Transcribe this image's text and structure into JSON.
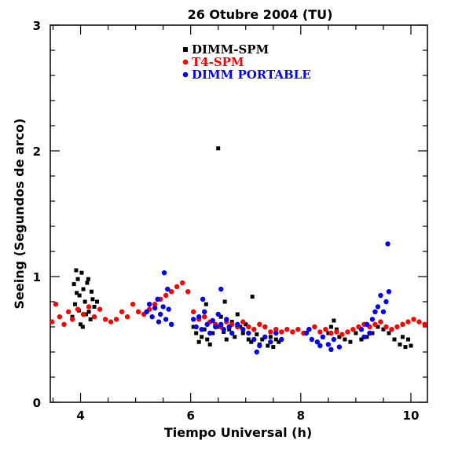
{
  "chart_data": {
    "type": "scatter",
    "title": "26 Otubre 2004 (TU)",
    "xlabel": "Tiempo Universal (h)",
    "ylabel": "Seeing (Segundos de arco)",
    "xlim": [
      3.45,
      10.3
    ],
    "ylim": [
      0,
      3
    ],
    "xticks": [
      4,
      6,
      8,
      10
    ],
    "yticks": [
      0,
      1,
      2,
      3
    ],
    "grid": false,
    "legend_position": "top-center",
    "series": [
      {
        "name": "DIMM-SPM",
        "marker": "square",
        "color": "#000000",
        "points": [
          [
            3.88,
            0.94
          ],
          [
            3.92,
            1.05
          ],
          [
            3.95,
            0.98
          ],
          [
            3.98,
            0.85
          ],
          [
            4.02,
            1.03
          ],
          [
            4.05,
            0.9
          ],
          [
            4.08,
            0.8
          ],
          [
            4.12,
            0.95
          ],
          [
            4.15,
            0.72
          ],
          [
            4.2,
            0.88
          ],
          [
            4.25,
            0.76
          ],
          [
            3.85,
            0.68
          ],
          [
            3.9,
            0.78
          ],
          [
            4.0,
            0.62
          ],
          [
            4.1,
            0.7
          ],
          [
            4.18,
            0.66
          ],
          [
            4.22,
            0.82
          ],
          [
            3.97,
            0.73
          ],
          [
            4.3,
            0.8
          ],
          [
            4.04,
            0.6
          ],
          [
            4.14,
            0.98
          ],
          [
            3.93,
            0.87
          ],
          [
            6.05,
            0.6
          ],
          [
            6.1,
            0.55
          ],
          [
            6.15,
            0.48
          ],
          [
            6.2,
            0.52
          ],
          [
            6.25,
            0.58
          ],
          [
            6.3,
            0.5
          ],
          [
            6.35,
            0.46
          ],
          [
            6.4,
            0.55
          ],
          [
            6.45,
            0.62
          ],
          [
            6.5,
            0.6
          ],
          [
            6.55,
            0.68
          ],
          [
            6.6,
            0.56
          ],
          [
            6.65,
            0.5
          ],
          [
            6.7,
            0.58
          ],
          [
            6.75,
            0.64
          ],
          [
            6.8,
            0.52
          ],
          [
            6.85,
            0.7
          ],
          [
            6.9,
            0.6
          ],
          [
            6.95,
            0.55
          ],
          [
            7.0,
            0.62
          ],
          [
            7.05,
            0.5
          ],
          [
            7.1,
            0.48
          ],
          [
            7.15,
            0.58
          ],
          [
            7.2,
            0.54
          ],
          [
            7.25,
            0.46
          ],
          [
            7.3,
            0.5
          ],
          [
            7.35,
            0.6
          ],
          [
            7.4,
            0.45
          ],
          [
            7.45,
            0.52
          ],
          [
            7.5,
            0.44
          ],
          [
            7.55,
            0.5
          ],
          [
            7.6,
            0.48
          ],
          [
            6.28,
            0.78
          ],
          [
            6.62,
            0.8
          ],
          [
            7.12,
            0.84
          ],
          [
            6.5,
            2.02
          ],
          [
            8.4,
            0.52
          ],
          [
            8.5,
            0.55
          ],
          [
            8.55,
            0.6
          ],
          [
            8.6,
            0.65
          ],
          [
            8.65,
            0.58
          ],
          [
            8.7,
            0.52
          ],
          [
            8.8,
            0.5
          ],
          [
            8.9,
            0.48
          ],
          [
            9.0,
            0.55
          ],
          [
            9.1,
            0.5
          ],
          [
            9.2,
            0.52
          ],
          [
            9.3,
            0.55
          ],
          [
            9.4,
            0.6
          ],
          [
            9.5,
            0.58
          ],
          [
            9.6,
            0.55
          ],
          [
            9.7,
            0.5
          ],
          [
            9.8,
            0.46
          ],
          [
            9.85,
            0.52
          ],
          [
            9.9,
            0.44
          ],
          [
            9.95,
            0.5
          ],
          [
            10.0,
            0.45
          ]
        ]
      },
      {
        "name": "T4-SPM",
        "marker": "circle",
        "color": "#ff0000",
        "points": [
          [
            3.48,
            0.64
          ],
          [
            3.55,
            0.78
          ],
          [
            3.62,
            0.68
          ],
          [
            3.7,
            0.62
          ],
          [
            3.78,
            0.72
          ],
          [
            3.85,
            0.66
          ],
          [
            3.95,
            0.74
          ],
          [
            4.05,
            0.7
          ],
          [
            4.15,
            0.76
          ],
          [
            4.25,
            0.68
          ],
          [
            4.35,
            0.74
          ],
          [
            4.45,
            0.66
          ],
          [
            4.55,
            0.64
          ],
          [
            4.65,
            0.66
          ],
          [
            4.75,
            0.72
          ],
          [
            4.85,
            0.68
          ],
          [
            4.95,
            0.78
          ],
          [
            5.05,
            0.72
          ],
          [
            5.15,
            0.7
          ],
          [
            5.25,
            0.74
          ],
          [
            5.35,
            0.78
          ],
          [
            5.45,
            0.82
          ],
          [
            5.55,
            0.85
          ],
          [
            5.65,
            0.88
          ],
          [
            5.75,
            0.92
          ],
          [
            5.85,
            0.95
          ],
          [
            5.95,
            0.88
          ],
          [
            6.05,
            0.72
          ],
          [
            6.15,
            0.66
          ],
          [
            6.25,
            0.68
          ],
          [
            6.35,
            0.64
          ],
          [
            6.45,
            0.62
          ],
          [
            6.55,
            0.6
          ],
          [
            6.65,
            0.64
          ],
          [
            6.75,
            0.62
          ],
          [
            6.85,
            0.6
          ],
          [
            6.95,
            0.64
          ],
          [
            7.05,
            0.6
          ],
          [
            7.15,
            0.58
          ],
          [
            7.25,
            0.62
          ],
          [
            7.35,
            0.6
          ],
          [
            7.45,
            0.56
          ],
          [
            7.55,
            0.58
          ],
          [
            7.65,
            0.56
          ],
          [
            7.75,
            0.58
          ],
          [
            7.85,
            0.56
          ],
          [
            7.95,
            0.58
          ],
          [
            8.05,
            0.55
          ],
          [
            8.15,
            0.58
          ],
          [
            8.25,
            0.6
          ],
          [
            8.35,
            0.56
          ],
          [
            8.45,
            0.58
          ],
          [
            8.55,
            0.55
          ],
          [
            8.65,
            0.56
          ],
          [
            8.75,
            0.54
          ],
          [
            8.85,
            0.56
          ],
          [
            8.95,
            0.58
          ],
          [
            9.05,
            0.6
          ],
          [
            9.15,
            0.62
          ],
          [
            9.25,
            0.6
          ],
          [
            9.35,
            0.62
          ],
          [
            9.45,
            0.64
          ],
          [
            9.55,
            0.6
          ],
          [
            9.65,
            0.58
          ],
          [
            9.75,
            0.6
          ],
          [
            9.85,
            0.62
          ],
          [
            9.95,
            0.64
          ],
          [
            10.05,
            0.66
          ],
          [
            10.15,
            0.64
          ],
          [
            10.25,
            0.62
          ]
        ]
      },
      {
        "name": "DIMM PORTABLE",
        "marker": "circle",
        "color": "#0000ff",
        "points": [
          [
            5.2,
            0.72
          ],
          [
            5.25,
            0.78
          ],
          [
            5.3,
            0.68
          ],
          [
            5.35,
            0.75
          ],
          [
            5.4,
            0.82
          ],
          [
            5.45,
            0.7
          ],
          [
            5.5,
            0.76
          ],
          [
            5.55,
            0.66
          ],
          [
            5.6,
            0.74
          ],
          [
            5.65,
            0.62
          ],
          [
            5.52,
            1.03
          ],
          [
            5.58,
            0.9
          ],
          [
            5.42,
            0.64
          ],
          [
            6.05,
            0.66
          ],
          [
            6.1,
            0.6
          ],
          [
            6.15,
            0.68
          ],
          [
            6.2,
            0.58
          ],
          [
            6.25,
            0.72
          ],
          [
            6.3,
            0.62
          ],
          [
            6.35,
            0.55
          ],
          [
            6.4,
            0.65
          ],
          [
            6.45,
            0.6
          ],
          [
            6.5,
            0.7
          ],
          [
            6.55,
            0.62
          ],
          [
            6.6,
            0.58
          ],
          [
            6.65,
            0.66
          ],
          [
            6.7,
            0.6
          ],
          [
            6.75,
            0.55
          ],
          [
            6.85,
            0.62
          ],
          [
            6.95,
            0.58
          ],
          [
            7.05,
            0.55
          ],
          [
            7.15,
            0.5
          ],
          [
            7.25,
            0.45
          ],
          [
            7.35,
            0.52
          ],
          [
            7.45,
            0.48
          ],
          [
            7.55,
            0.55
          ],
          [
            7.65,
            0.5
          ],
          [
            6.55,
            0.9
          ],
          [
            7.2,
            0.4
          ],
          [
            6.22,
            0.82
          ],
          [
            8.1,
            0.55
          ],
          [
            8.2,
            0.5
          ],
          [
            8.3,
            0.48
          ],
          [
            8.4,
            0.52
          ],
          [
            8.5,
            0.46
          ],
          [
            8.6,
            0.5
          ],
          [
            8.7,
            0.44
          ],
          [
            8.15,
            0.58
          ],
          [
            8.35,
            0.45
          ],
          [
            8.55,
            0.42
          ],
          [
            9.1,
            0.58
          ],
          [
            9.2,
            0.62
          ],
          [
            9.3,
            0.66
          ],
          [
            9.35,
            0.72
          ],
          [
            9.4,
            0.76
          ],
          [
            9.45,
            0.85
          ],
          [
            9.5,
            0.72
          ],
          [
            9.55,
            0.8
          ],
          [
            9.6,
            0.88
          ],
          [
            9.25,
            0.55
          ],
          [
            9.15,
            0.52
          ],
          [
            9.58,
            1.26
          ]
        ]
      }
    ]
  }
}
